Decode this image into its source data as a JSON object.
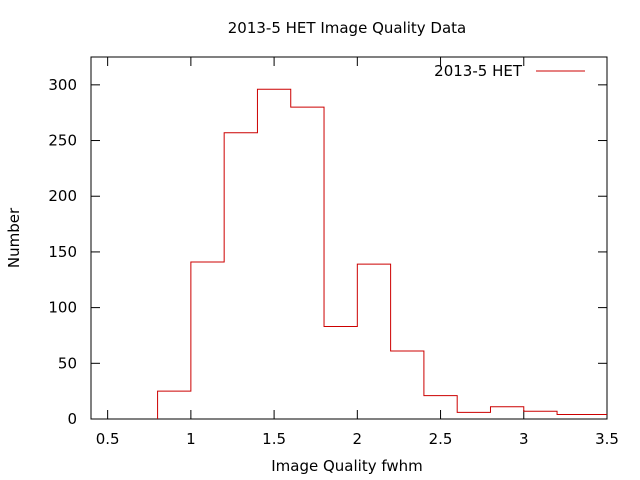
{
  "chart_data": {
    "type": "bar",
    "title": "2013-5 HET Image Quality Data",
    "xlabel": "Image Quality fwhm",
    "ylabel": "Number",
    "xlim": [
      0.4,
      3.5
    ],
    "ylim": [
      0,
      325
    ],
    "xticks": [
      0.5,
      1,
      1.5,
      2,
      2.5,
      3,
      3.5
    ],
    "xtick_labels": [
      "0.5",
      "1",
      "1.5",
      "2",
      "2.5",
      "3",
      "3.5"
    ],
    "yticks": [
      0,
      50,
      100,
      150,
      200,
      250,
      300
    ],
    "ytick_labels": [
      "0",
      "50",
      "100",
      "150",
      "200",
      "250",
      "300"
    ],
    "grid": false,
    "legend_position": "top-right",
    "series": [
      {
        "name": "2013-5 HET",
        "color": "#cc0000",
        "style": "histogram-step",
        "bin_edges": [
          0.8,
          1.0,
          1.2,
          1.4,
          1.6,
          1.8,
          2.0,
          2.2,
          2.4,
          2.6,
          2.8,
          3.0,
          3.2,
          3.4
        ],
        "values": [
          25,
          141,
          257,
          296,
          280,
          83,
          139,
          61,
          21,
          6,
          11,
          7,
          4
        ]
      }
    ]
  }
}
